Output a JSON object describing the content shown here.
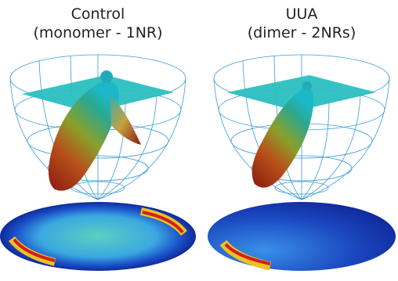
{
  "panels": [
    {
      "title": "Control",
      "subtitle": "(monomer - 1NR)"
    },
    {
      "title": "UUA",
      "subtitle": "(dimer - 2NRs)"
    }
  ]
}
